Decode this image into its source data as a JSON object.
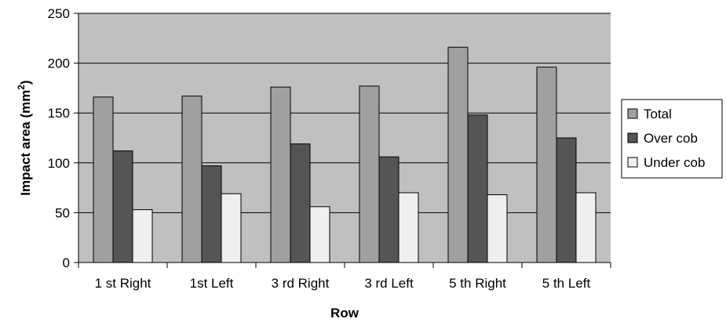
{
  "chart_data": {
    "type": "bar",
    "title": "",
    "xlabel": "Row",
    "ylabel_main": "Impact area (mm",
    "ylabel_sup": "2",
    "ylabel_close": ")",
    "ylim": [
      0,
      250
    ],
    "yticks": [
      0,
      50,
      100,
      150,
      200,
      250
    ],
    "yticks_text": [
      "0",
      "50",
      "100",
      "150",
      "200",
      "250"
    ],
    "grid": true,
    "legend_position": "right",
    "categories": [
      "1 st Right",
      "1st Left",
      "3 rd Right",
      "3 rd Left",
      "5 th Right",
      "5 th Left"
    ],
    "series": [
      {
        "name": "Total",
        "values": [
          166,
          167,
          176,
          177,
          216,
          196
        ]
      },
      {
        "name": "Over cob",
        "values": [
          112,
          97,
          119,
          106,
          148,
          125
        ]
      },
      {
        "name": "Under cob",
        "values": [
          53,
          69,
          56,
          70,
          68,
          70
        ]
      }
    ]
  },
  "colors": {
    "plot_background": "#c0c0c0",
    "gridline": "#000000",
    "series": [
      "#a0a0a0",
      "#555555",
      "#efefef"
    ]
  }
}
